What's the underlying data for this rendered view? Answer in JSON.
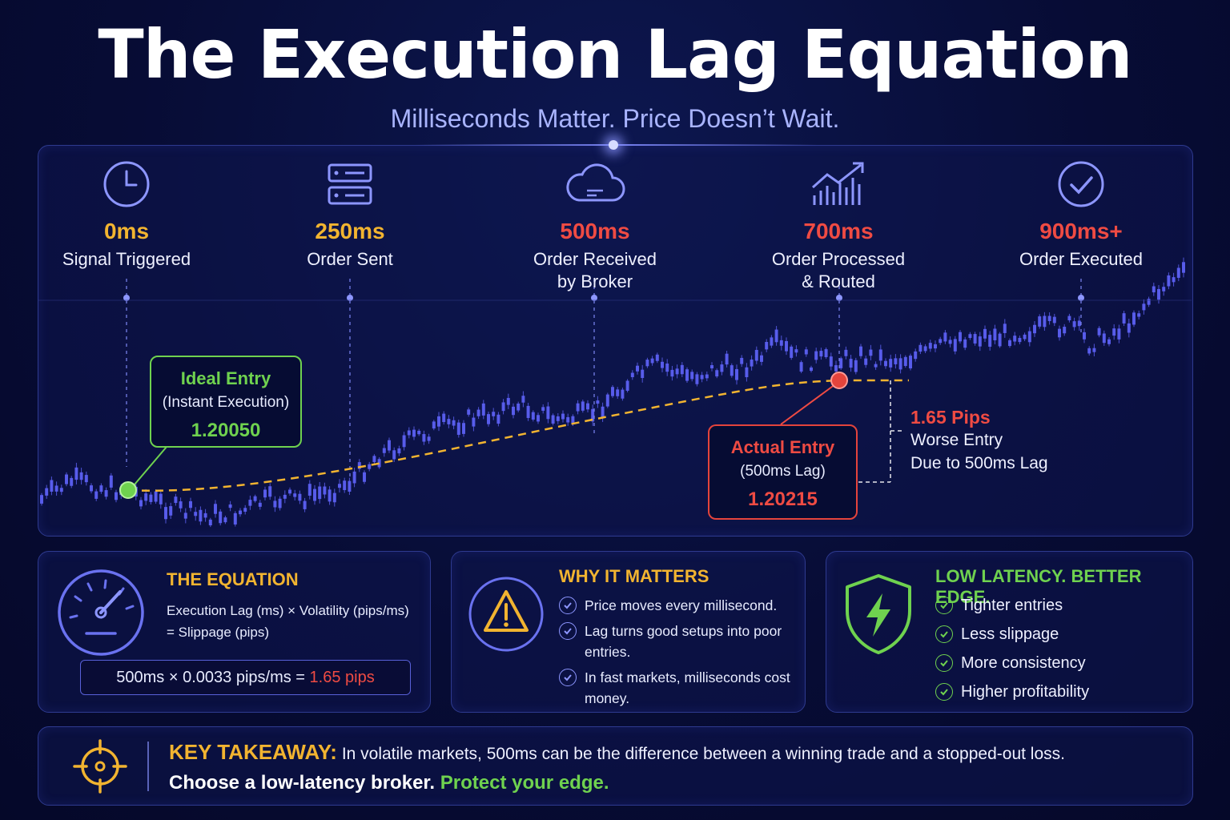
{
  "header": {
    "title": "The Execution Lag Equation",
    "subtitle": "Milliseconds Matter. Price Doesn’t Wait."
  },
  "timeline": [
    {
      "time": "0ms",
      "label": "Signal Triggered",
      "color": "#f2b430",
      "icon": "clock-icon"
    },
    {
      "time": "250ms",
      "label": "Order Sent",
      "color": "#f2b430",
      "icon": "server-icon"
    },
    {
      "time": "500ms",
      "label": "Order Received\nby Broker",
      "color": "#ef4b43",
      "icon": "cloud-icon"
    },
    {
      "time": "700ms",
      "label": "Order Processed\n& Routed",
      "color": "#ef4b43",
      "icon": "bar-chart-trend-icon"
    },
    {
      "time": "900ms+",
      "label": "Order Executed",
      "color": "#ef4b43",
      "icon": "check-circle-icon"
    }
  ],
  "ideal_entry": {
    "title": "Ideal Entry",
    "subtitle": "(Instant Execution)",
    "value": "1.20050",
    "color": "#6fd24f"
  },
  "actual_entry": {
    "title": "Actual Entry",
    "subtitle": "(500ms Lag)",
    "value": "1.20215",
    "color": "#ef4b43"
  },
  "pips_note": {
    "title": "1.65 Pips",
    "body": "Worse Entry\nDue to 500ms Lag"
  },
  "equation": {
    "title": "THE EQUATION",
    "text_line1": "Execution Lag (ms) × Volatility (pips/ms)",
    "text_line2": "= Slippage (pips)",
    "example_left": "500ms  ×  0.0033 pips/ms  =",
    "example_result": "1.65 pips"
  },
  "why": {
    "title": "WHY IT MATTERS",
    "items": [
      "Price moves every millisecond.",
      "Lag turns good setups into poor entries.",
      "In fast markets, milliseconds cost money."
    ]
  },
  "low_latency": {
    "title": "LOW LATENCY. BETTER EDGE.",
    "items": [
      "Tighter entries",
      "Less slippage",
      "More consistency",
      "Higher profitability"
    ]
  },
  "takeaway": {
    "label": "KEY TAKEAWAY:",
    "text": "In volatile markets, 500ms can be the difference between a winning trade and a stopped-out loss.",
    "line2": "Choose a low-latency broker.",
    "line2_accent": "Protect your edge."
  },
  "colors": {
    "accent_gold": "#f2b430",
    "accent_red": "#ef4b43",
    "accent_green": "#6fd24f",
    "candles": "#5b5ff0"
  }
}
